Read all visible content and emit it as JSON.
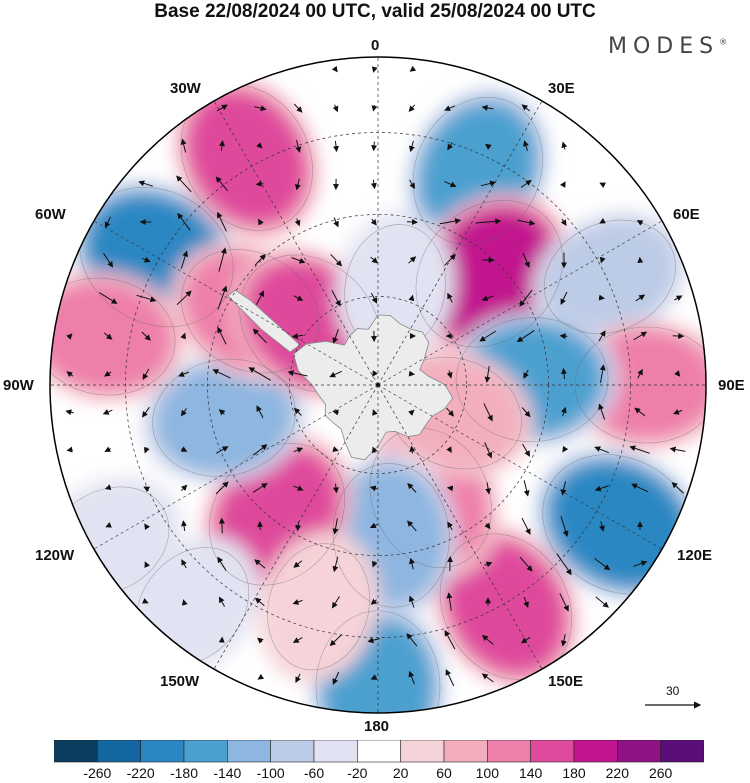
{
  "title": "Base 22/08/2024 00 UTC, valid 25/08/2024 00 UTC",
  "brand": "MODES",
  "brand_mark": "®",
  "longitude_labels": {
    "lon_0": "0",
    "lon_30e": "30E",
    "lon_60e": "60E",
    "lon_90e": "90E",
    "lon_120e": "120E",
    "lon_150e": "150E",
    "lon_180": "180",
    "lon_150w": "150W",
    "lon_120w": "120W",
    "lon_90w": "90W",
    "lon_60w": "60W",
    "lon_30w": "30W"
  },
  "reference_vector": "30",
  "colorbar": {
    "labels": [
      "-260",
      "-220",
      "-180",
      "-140",
      "-100",
      "-60",
      "-20",
      "20",
      "60",
      "100",
      "140",
      "180",
      "220",
      "260"
    ],
    "colors": [
      "#0b3d5e",
      "#1466a0",
      "#2b87c2",
      "#4ca0d0",
      "#8db6e0",
      "#bccbe6",
      "#e2e3f2",
      "#ffffff",
      "#f6d3d8",
      "#f3aebd",
      "#ee7faa",
      "#df4a9c",
      "#c2158f",
      "#901386",
      "#5a0f78"
    ]
  },
  "anomaly_features": [
    {
      "value": -220,
      "lon": -60,
      "colat": 0.78
    },
    {
      "value": 180,
      "lon": -30,
      "colat": 0.8
    },
    {
      "value": -180,
      "lon": 25,
      "colat": 0.72
    },
    {
      "value": 220,
      "lon": 45,
      "colat": 0.48
    },
    {
      "value": -100,
      "lon": 65,
      "colat": 0.78
    },
    {
      "value": 140,
      "lon": 90,
      "colat": 0.82
    },
    {
      "value": -180,
      "lon": 88,
      "colat": 0.47
    },
    {
      "value": -220,
      "lon": 120,
      "colat": 0.85
    },
    {
      "value": 180,
      "lon": 150,
      "colat": 0.78
    },
    {
      "value": 140,
      "lon": 155,
      "colat": 0.38
    },
    {
      "value": -180,
      "lon": 180,
      "colat": 0.92
    },
    {
      "value": -140,
      "lon": 175,
      "colat": 0.46
    },
    {
      "value": 180,
      "lon": -142,
      "colat": 0.5
    },
    {
      "value": -60,
      "lon": -140,
      "colat": 0.88
    },
    {
      "value": -140,
      "lon": -102,
      "colat": 0.48
    },
    {
      "value": 140,
      "lon": -80,
      "colat": 0.85
    },
    {
      "value": 140,
      "lon": -60,
      "colat": 0.45
    },
    {
      "value": 180,
      "lon": -48,
      "colat": 0.28
    },
    {
      "value": -60,
      "lon": -120,
      "colat": 0.95
    },
    {
      "value": -40,
      "lon": 10,
      "colat": 0.3
    },
    {
      "value": 60,
      "lon": -165,
      "colat": 0.7
    },
    {
      "value": 100,
      "lon": 110,
      "colat": 0.25
    }
  ]
}
